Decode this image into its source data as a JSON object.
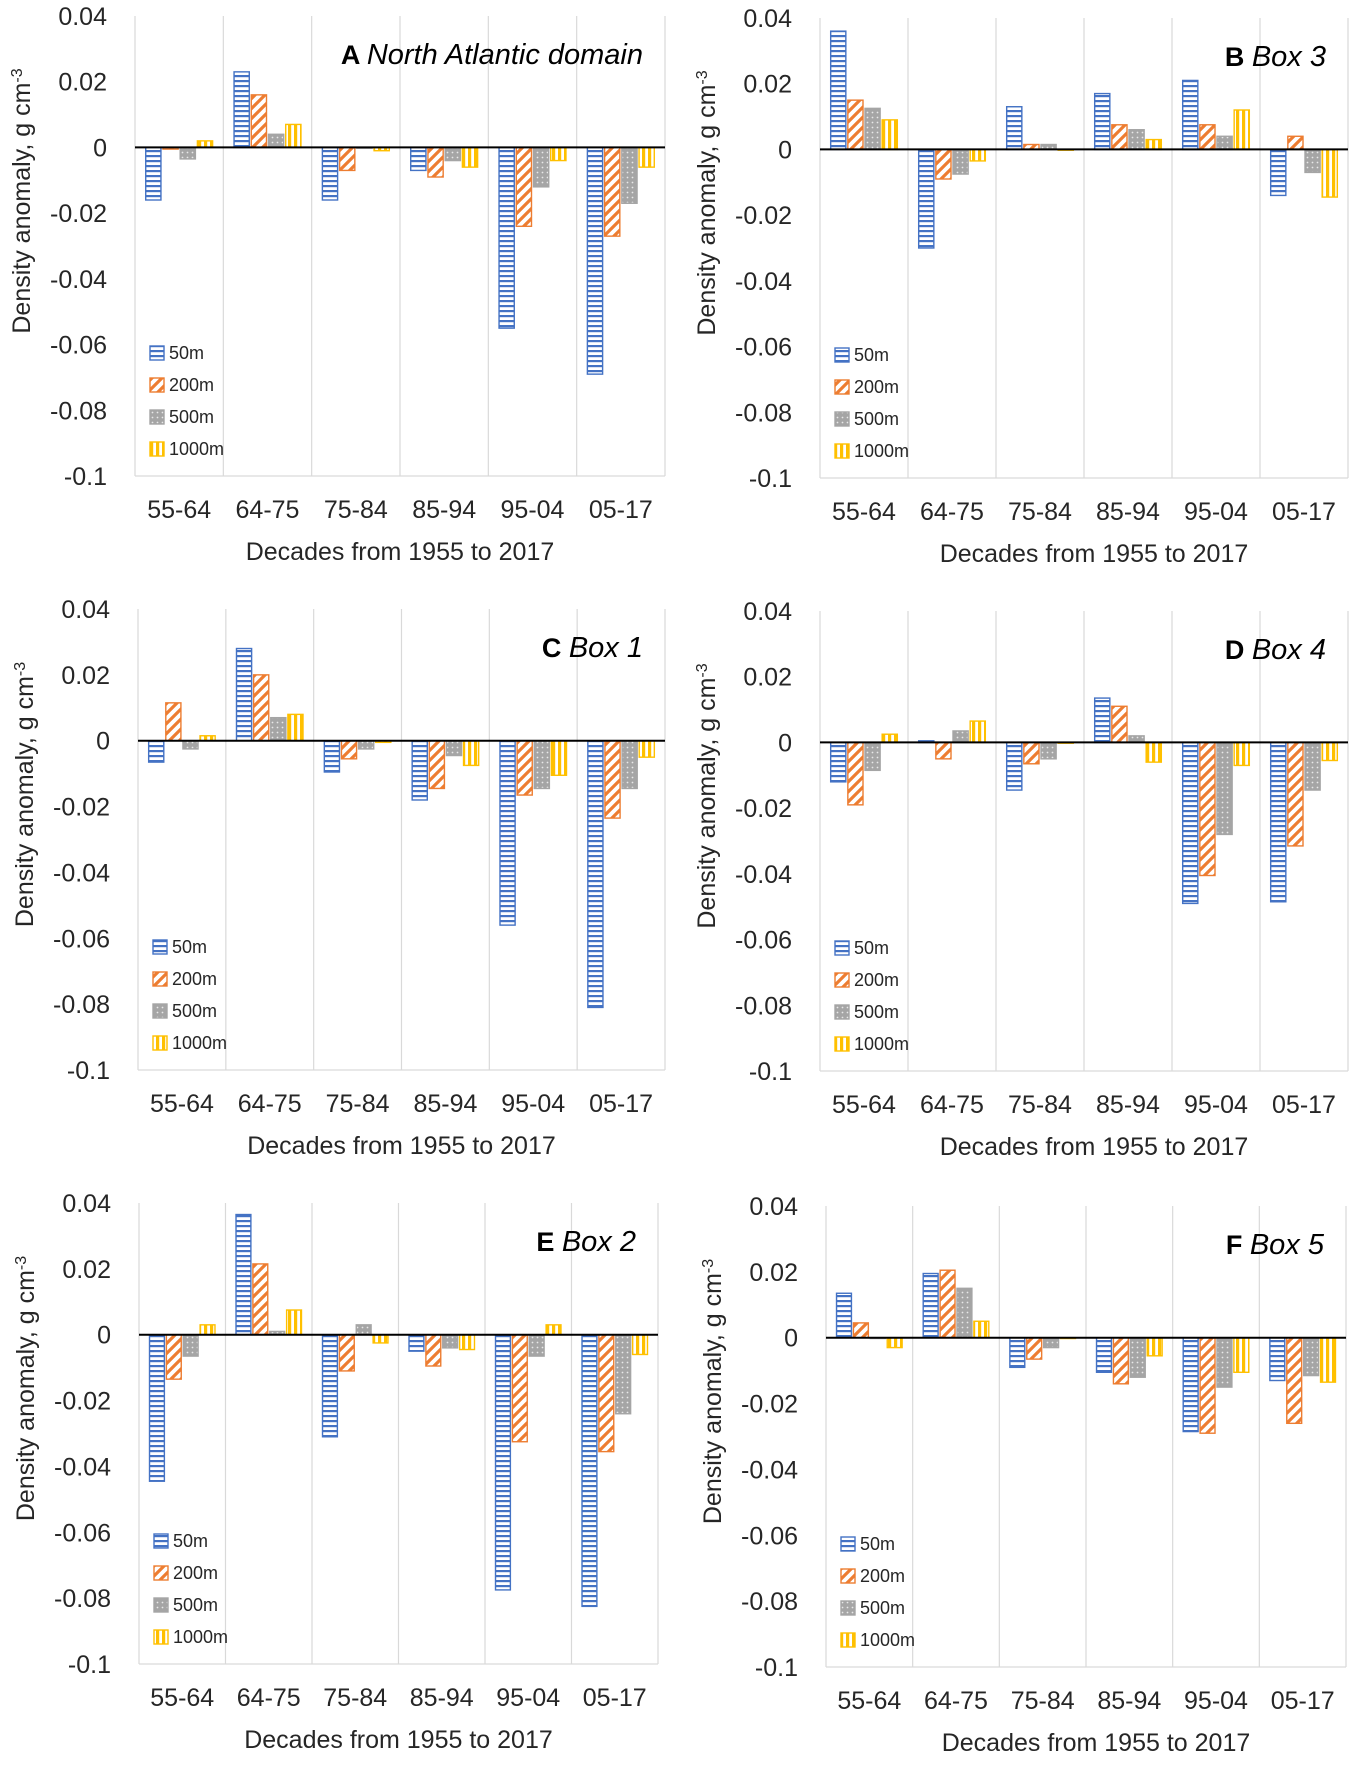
{
  "figure": {
    "legend": [
      {
        "key": "s50",
        "label": "50m"
      },
      {
        "key": "s200",
        "label": "200m"
      },
      {
        "key": "s500",
        "label": "500m"
      },
      {
        "key": "s1000",
        "label": "1000m"
      }
    ],
    "colors": {
      "s50": "#4472C4",
      "s200": "#ED7D31",
      "s500": "#A5A5A5",
      "s1000": "#FFC000",
      "grid": "#d9d9d9",
      "axis": "#000000",
      "text": "#262626"
    }
  },
  "chart_data": [
    {
      "type": "bar",
      "letter": "A",
      "title": "North Atlantic domain",
      "categories": [
        "55-64",
        "64-75",
        "75-84",
        "85-94",
        "95-04",
        "05-17"
      ],
      "xlabel": "Decades from 1955 to 2017",
      "ylabel": "Density anomaly, g cm",
      "ylabel_sup": "-3",
      "ylim": [
        -0.1,
        0.04
      ],
      "yticks": [
        0.04,
        0.02,
        0,
        -0.02,
        -0.04,
        -0.06,
        -0.08,
        -0.1
      ],
      "ytick_labels": [
        "0.04",
        "0.02",
        "0",
        "-0.02",
        "-0.04",
        "-0.06",
        "-0.08",
        "-0.1"
      ],
      "grid": "vertical",
      "legend_position": "bottom-left",
      "series": [
        {
          "name": "50m",
          "values": [
            -0.016,
            0.023,
            -0.016,
            -0.007,
            -0.055,
            -0.069
          ]
        },
        {
          "name": "200m",
          "values": [
            -0.0005,
            0.016,
            -0.007,
            -0.009,
            -0.024,
            -0.027
          ]
        },
        {
          "name": "500m",
          "values": [
            -0.0035,
            0.004,
            0.0,
            -0.004,
            -0.012,
            -0.017
          ]
        },
        {
          "name": "1000m",
          "values": [
            0.002,
            0.007,
            -0.001,
            -0.006,
            -0.004,
            -0.006
          ]
        }
      ]
    },
    {
      "type": "bar",
      "letter": "B",
      "title": "Box 3",
      "categories": [
        "55-64",
        "64-75",
        "75-84",
        "85-94",
        "95-04",
        "05-17"
      ],
      "xlabel": "Decades from 1955 to 2017",
      "ylabel": "Density anomaly, g cm",
      "ylabel_sup": "-3",
      "ylim": [
        -0.1,
        0.04
      ],
      "yticks": [
        0.04,
        0.02,
        0,
        -0.02,
        -0.04,
        -0.06,
        -0.08,
        -0.1
      ],
      "ytick_labels": [
        "0.04",
        "0.02",
        "0",
        "-0.02",
        "-0.04",
        "-0.06",
        "-0.08",
        "-0.1"
      ],
      "grid": "vertical",
      "legend_position": "bottom-left",
      "series": [
        {
          "name": "50m",
          "values": [
            0.036,
            -0.03,
            0.013,
            0.017,
            0.021,
            -0.014
          ]
        },
        {
          "name": "200m",
          "values": [
            0.015,
            -0.009,
            0.0015,
            0.0075,
            0.0075,
            0.004
          ]
        },
        {
          "name": "500m",
          "values": [
            0.0125,
            -0.0075,
            0.0015,
            0.006,
            0.004,
            -0.007
          ]
        },
        {
          "name": "1000m",
          "values": [
            0.009,
            -0.0035,
            0.0,
            0.003,
            0.012,
            -0.0145
          ]
        }
      ]
    },
    {
      "type": "bar",
      "letter": "C",
      "title": "Box 1",
      "categories": [
        "55-64",
        "64-75",
        "75-84",
        "85-94",
        "95-04",
        "05-17"
      ],
      "xlabel": "Decades from 1955 to 2017",
      "ylabel": "Density anomaly, g cm",
      "ylabel_sup": "-3",
      "ylim": [
        -0.1,
        0.04
      ],
      "yticks": [
        0.04,
        0.02,
        0,
        -0.02,
        -0.04,
        -0.06,
        -0.08,
        -0.1
      ],
      "ytick_labels": [
        "0.04",
        "0.02",
        "0",
        "-0.02",
        "-0.04",
        "-0.06",
        "-0.08",
        "-0.1"
      ],
      "grid": "vertical",
      "legend_position": "bottom-left",
      "series": [
        {
          "name": "50m",
          "values": [
            -0.0065,
            0.028,
            -0.0095,
            -0.018,
            -0.056,
            -0.081
          ]
        },
        {
          "name": "200m",
          "values": [
            0.0115,
            0.02,
            -0.0055,
            -0.0145,
            -0.0165,
            -0.0235
          ]
        },
        {
          "name": "500m",
          "values": [
            -0.0025,
            0.007,
            -0.0025,
            -0.0045,
            -0.0145,
            -0.0145
          ]
        },
        {
          "name": "1000m",
          "values": [
            0.0015,
            0.008,
            -0.0005,
            -0.0075,
            -0.0105,
            -0.005
          ]
        }
      ]
    },
    {
      "type": "bar",
      "letter": "D",
      "title": "Box 4",
      "categories": [
        "55-64",
        "64-75",
        "75-84",
        "85-94",
        "95-04",
        "05-17"
      ],
      "xlabel": "Decades from 1955 to 2017",
      "ylabel": "Density anomaly, g cm",
      "ylabel_sup": "-3",
      "ylim": [
        -0.1,
        0.04
      ],
      "yticks": [
        0.04,
        0.02,
        0,
        -0.02,
        -0.04,
        -0.06,
        -0.08,
        -0.1
      ],
      "ytick_labels": [
        "0.04",
        "0.02",
        "0",
        "-0.02",
        "-0.04",
        "-0.06",
        "-0.08",
        "-0.1"
      ],
      "grid": "vertical",
      "legend_position": "bottom-left",
      "series": [
        {
          "name": "50m",
          "values": [
            -0.012,
            0.0005,
            -0.0145,
            0.0135,
            -0.049,
            -0.0485
          ]
        },
        {
          "name": "200m",
          "values": [
            -0.019,
            -0.005,
            -0.0065,
            0.011,
            -0.0405,
            -0.0315
          ]
        },
        {
          "name": "500m",
          "values": [
            -0.0085,
            0.0035,
            -0.005,
            0.002,
            -0.028,
            -0.0145
          ]
        },
        {
          "name": "1000m",
          "values": [
            0.0025,
            0.0065,
            0.0,
            -0.006,
            -0.007,
            -0.0055
          ]
        }
      ]
    },
    {
      "type": "bar",
      "letter": "E",
      "title": "Box 2",
      "categories": [
        "55-64",
        "64-75",
        "75-84",
        "85-94",
        "95-04",
        "05-17"
      ],
      "xlabel": "Decades from 1955 to 2017",
      "ylabel": "Density anomaly, g cm",
      "ylabel_sup": "-3",
      "ylim": [
        -0.1,
        0.04
      ],
      "yticks": [
        0.04,
        0.02,
        0,
        -0.02,
        -0.04,
        -0.06,
        -0.08,
        -0.1
      ],
      "ytick_labels": [
        "0.04",
        "0.02",
        "0",
        "-0.02",
        "-0.04",
        "-0.06",
        "-0.08",
        "-0.1"
      ],
      "grid": "vertical",
      "legend_position": "bottom-left",
      "series": [
        {
          "name": "50m",
          "values": [
            -0.0445,
            0.0365,
            -0.031,
            -0.005,
            -0.0775,
            -0.0825
          ]
        },
        {
          "name": "200m",
          "values": [
            -0.0135,
            0.0215,
            -0.011,
            -0.0095,
            -0.0325,
            -0.0355
          ]
        },
        {
          "name": "500m",
          "values": [
            -0.0065,
            0.001,
            0.003,
            -0.004,
            -0.0065,
            -0.024
          ]
        },
        {
          "name": "1000m",
          "values": [
            0.003,
            0.0075,
            -0.0025,
            -0.0045,
            0.003,
            -0.006
          ]
        }
      ]
    },
    {
      "type": "bar",
      "letter": "F",
      "title": "Box 5",
      "categories": [
        "55-64",
        "64-75",
        "75-84",
        "85-94",
        "95-04",
        "05-17"
      ],
      "xlabel": "Decades from 1955 to 2017",
      "ylabel": "Density anomaly, g cm",
      "ylabel_sup": "-3",
      "ylim": [
        -0.1,
        0.04
      ],
      "yticks": [
        0.04,
        0.02,
        0,
        -0.02,
        -0.04,
        -0.06,
        -0.08,
        -0.1
      ],
      "ytick_labels": [
        "0.04",
        "0.02",
        "0",
        "-0.02",
        "-0.04",
        "-0.06",
        "-0.08",
        "-0.1"
      ],
      "grid": "vertical",
      "legend_position": "bottom-left",
      "series": [
        {
          "name": "50m",
          "values": [
            0.0135,
            0.0195,
            -0.009,
            -0.0105,
            -0.0285,
            -0.013
          ]
        },
        {
          "name": "200m",
          "values": [
            0.0045,
            0.0205,
            -0.0065,
            -0.014,
            -0.029,
            -0.026
          ]
        },
        {
          "name": "500m",
          "values": [
            0.0,
            0.015,
            -0.003,
            -0.012,
            -0.015,
            -0.0115
          ]
        },
        {
          "name": "1000m",
          "values": [
            -0.003,
            0.005,
            0.0,
            -0.0055,
            -0.0105,
            -0.0135
          ]
        }
      ]
    }
  ]
}
